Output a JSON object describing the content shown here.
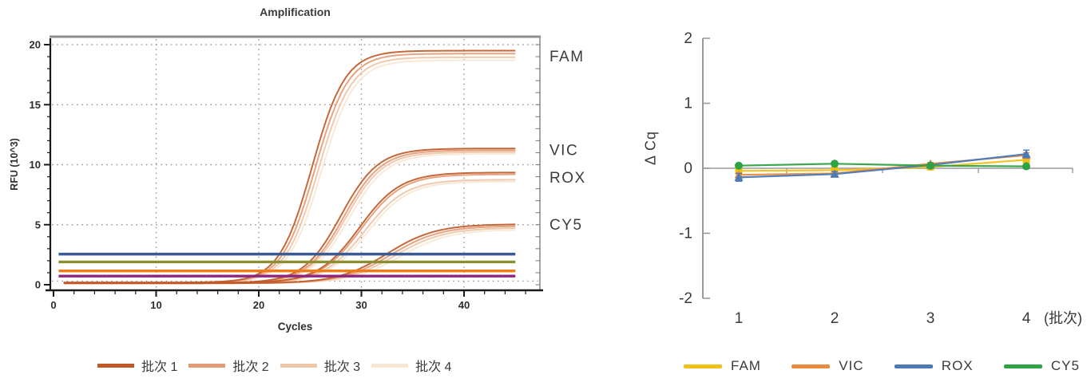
{
  "left_chart": {
    "title": "Amplification",
    "xlabel": "Cycles",
    "ylabel": "RFU (10^3)",
    "xlim": [
      0,
      47
    ],
    "ylim": [
      0,
      20
    ],
    "xticks": [
      0,
      10,
      20,
      30,
      40
    ],
    "yticks": [
      0,
      5,
      10,
      15,
      20
    ],
    "x_minor_step": 2,
    "y_minor_step": 1,
    "grid_x": [
      10,
      20,
      30,
      40
    ],
    "grid_y": [
      0.3,
      5,
      10,
      15,
      20
    ],
    "batches": [
      {
        "label": "批次 1",
        "color": "#bf5a28"
      },
      {
        "label": "批次 2",
        "color": "#e39b77"
      },
      {
        "label": "批次 3",
        "color": "#eec6a8"
      },
      {
        "label": "批次 4",
        "color": "#f9e7d6"
      }
    ],
    "channels": [
      {
        "name": "FAM",
        "label_value": 19.0,
        "k": 0.62,
        "base": 0.18,
        "plateaus": [
          19.5,
          19.25,
          18.95,
          18.7
        ],
        "midpoints": [
          25.2,
          25.5,
          25.8,
          26.1
        ]
      },
      {
        "name": "VIC",
        "label_value": 11.2,
        "k": 0.55,
        "base": 0.15,
        "plateaus": [
          11.35,
          11.2,
          11.05,
          10.9
        ],
        "midpoints": [
          28.0,
          28.3,
          28.5,
          28.8
        ]
      },
      {
        "name": "ROX",
        "label_value": 8.9,
        "k": 0.5,
        "base": 0.15,
        "plateaus": [
          9.35,
          9.2,
          8.75,
          8.6
        ],
        "midpoints": [
          29.8,
          30.0,
          30.3,
          30.6
        ]
      },
      {
        "name": "CY5",
        "label_value": 5.0,
        "k": 0.42,
        "base": 0.12,
        "plateaus": [
          5.05,
          4.9,
          4.75,
          4.6
        ],
        "midpoints": [
          32.5,
          32.9,
          33.3,
          33.8
        ]
      }
    ],
    "thresholds": [
      {
        "value": 2.55,
        "color": "#3a5a94"
      },
      {
        "value": 1.9,
        "color": "#8d8e2f"
      },
      {
        "value": 1.15,
        "color": "#ee7d18"
      },
      {
        "value": 0.72,
        "color": "#8e2680"
      }
    ],
    "threshold_x_range": [
      0.5,
      45
    ]
  },
  "right_chart": {
    "ylabel": "Δ Cq",
    "x_suffix": "(批次)",
    "categories": [
      "1",
      "2",
      "3",
      "4"
    ],
    "ylim": [
      -2,
      2
    ],
    "yticks": [
      2,
      1,
      0,
      -1,
      -2
    ],
    "series": [
      {
        "name": "FAM",
        "color": "#f2c013",
        "marker": "square",
        "values": [
          -0.04,
          -0.03,
          0.02,
          0.13
        ],
        "errors": [
          0.02,
          0.02,
          0.02,
          0.03
        ]
      },
      {
        "name": "VIC",
        "color": "#e98b3e",
        "marker": "triangle",
        "values": [
          -0.1,
          -0.08,
          0.07,
          0.2
        ],
        "errors": [
          0.03,
          0.03,
          0.02,
          0.04
        ]
      },
      {
        "name": "ROX",
        "color": "#4b7ab7",
        "marker": "triangle",
        "values": [
          -0.14,
          -0.09,
          0.05,
          0.22
        ],
        "errors": [
          0.06,
          0.04,
          0.02,
          0.06
        ]
      },
      {
        "name": "CY5",
        "color": "#2fa344",
        "marker": "circle",
        "values": [
          0.04,
          0.07,
          0.04,
          0.03
        ],
        "errors": [
          0.03,
          0.02,
          0.02,
          0.03
        ]
      }
    ]
  },
  "chart_data": [
    {
      "type": "line",
      "title": "Amplification",
      "xlabel": "Cycles",
      "ylabel": "RFU (10^3)",
      "xlim": [
        0,
        47
      ],
      "ylim": [
        0,
        20
      ],
      "grid": true,
      "legend_position": "bottom",
      "description": "qPCR amplification sigmoid curves for 4 fluorescence channels, 4 batches each; plateaus: FAM ~19, VIC ~11.2, ROX ~9, CY5 ~4.9; takeoff cycles ~20-28; horizontal threshold lines at 2.55 (blue), 1.9 (olive), 1.15 (orange), 0.72 (purple)",
      "series_labels": [
        "批次 1",
        "批次 2",
        "批次 3",
        "批次 4"
      ],
      "annotations": [
        "FAM",
        "VIC",
        "ROX",
        "CY5"
      ]
    },
    {
      "type": "line",
      "ylabel": "Δ Cq",
      "categories": [
        "1",
        "2",
        "3",
        "4"
      ],
      "xlabel_suffix": "(批次)",
      "ylim": [
        -2,
        2
      ],
      "legend_position": "bottom",
      "series": [
        {
          "name": "FAM",
          "values": [
            -0.04,
            -0.03,
            0.02,
            0.13
          ]
        },
        {
          "name": "VIC",
          "values": [
            -0.1,
            -0.08,
            0.07,
            0.2
          ]
        },
        {
          "name": "ROX",
          "values": [
            -0.14,
            -0.09,
            0.05,
            0.22
          ]
        },
        {
          "name": "CY5",
          "values": [
            0.04,
            0.07,
            0.04,
            0.03
          ]
        }
      ]
    }
  ]
}
